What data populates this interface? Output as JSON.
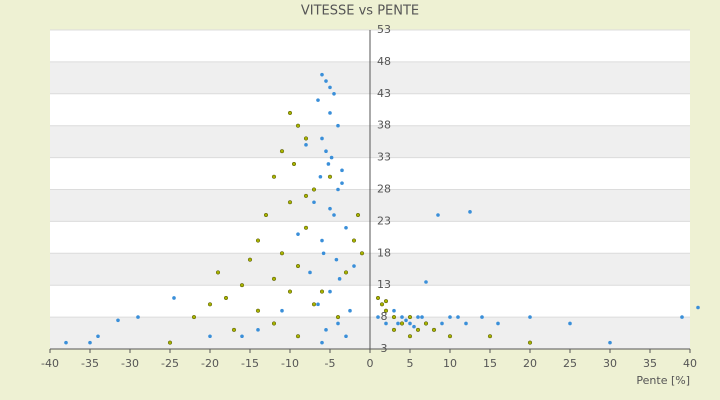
{
  "chart_data": {
    "type": "scatter",
    "title": "VITESSE vs PENTE",
    "x_label": "Pente [%]",
    "xlim": [
      -40,
      40
    ],
    "xticks": [
      -40,
      -35,
      -30,
      -25,
      -20,
      -15,
      -10,
      -5,
      0,
      5,
      10,
      15,
      20,
      25,
      30,
      35,
      40
    ],
    "ylim": [
      3,
      53
    ],
    "yticks": [
      3,
      8,
      13,
      18,
      23,
      28,
      33,
      38,
      43,
      48,
      53
    ],
    "grid": true,
    "series": [
      {
        "color": "#3a8fd9",
        "x": [
          -6,
          -5.5,
          -5,
          -4.5,
          -6.5,
          -5,
          -4,
          -6,
          -5.5,
          -4.8,
          -5.2,
          -6.2,
          -3.5,
          -4,
          -7,
          -5,
          -4.5,
          -3,
          -6,
          -5.8,
          -4.2,
          -7.5,
          -3.8,
          -5,
          -6.5,
          -2.5,
          -4,
          -5.5,
          -3,
          -6,
          -24.5,
          -31.5,
          -29,
          -20,
          -11,
          -14,
          -16,
          -38,
          -34,
          -35,
          1,
          2,
          3,
          4,
          5,
          6,
          7,
          8,
          9,
          10,
          11,
          12,
          14,
          16,
          20,
          25,
          30,
          39,
          41,
          8.5,
          12.5,
          7,
          3.5,
          5.5,
          -8,
          -9,
          -2,
          -3.5,
          6.5,
          4.5
        ],
        "values": [
          46,
          45,
          44,
          43,
          42,
          40,
          38,
          36,
          34,
          33,
          32,
          30,
          29,
          28,
          26,
          25,
          24,
          22,
          20,
          18,
          17,
          15,
          14,
          12,
          10,
          9,
          7,
          6,
          5,
          4,
          11,
          7.5,
          8,
          5,
          9,
          6,
          5,
          4,
          5,
          4,
          8,
          7,
          9,
          8,
          7,
          8,
          7,
          6,
          7,
          8,
          8,
          7,
          8,
          7,
          8,
          7,
          4,
          8,
          9.5,
          24,
          24.5,
          13.5,
          7,
          6.5,
          35,
          21,
          16,
          31,
          8,
          7.5
        ]
      },
      {
        "color": "#a8b400",
        "x": [
          -10,
          -9,
          -8,
          -11,
          -12,
          -9.5,
          -7,
          -10,
          -13,
          -8,
          -14,
          -11,
          -9,
          -15,
          -12,
          -16,
          -10,
          -18,
          -20,
          -22,
          -14,
          -7,
          -6,
          -3,
          -2,
          -1,
          -12,
          -17,
          -9,
          -25,
          1,
          1.5,
          2,
          3,
          4,
          5,
          6,
          7,
          8,
          3,
          10,
          15,
          20,
          5,
          2,
          -4,
          -8,
          -5,
          -19,
          -1.5
        ],
        "values": [
          40,
          38,
          36,
          34,
          30,
          32,
          28,
          26,
          24,
          22,
          20,
          18,
          16,
          17,
          14,
          13,
          12,
          11,
          10,
          8,
          9,
          10,
          12,
          15,
          20,
          18,
          7,
          6,
          5,
          4,
          11,
          10,
          9,
          8,
          7,
          8,
          6,
          7,
          6,
          6,
          5,
          5,
          4,
          5,
          10.5,
          8,
          27,
          30,
          15,
          24
        ]
      }
    ]
  }
}
